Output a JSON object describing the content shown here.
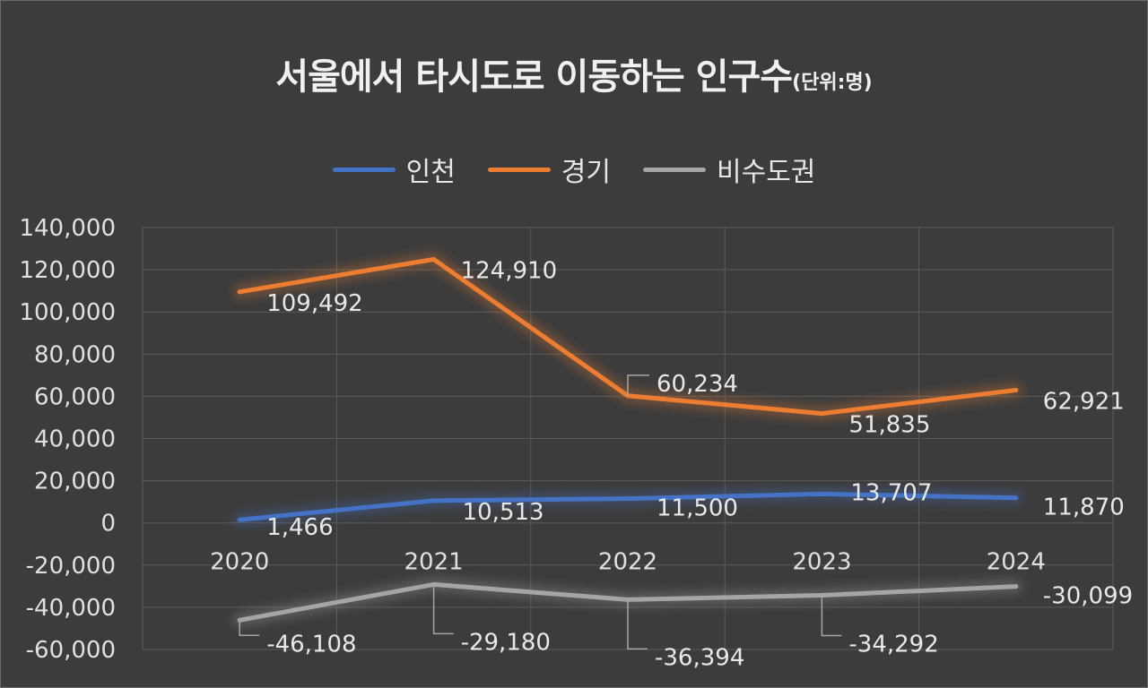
{
  "title_main": "서울에서 타시도로 이동하는 인구수",
  "title_unit": "(단위:명)",
  "chart_data": {
    "type": "line",
    "title": "서울에서 타시도로 이동하는 인구수(단위:명)",
    "categories": [
      "2020",
      "2021",
      "2022",
      "2023",
      "2024"
    ],
    "series": [
      {
        "name": "인천",
        "color": "#4472c4",
        "values": [
          1466,
          10513,
          11500,
          13707,
          11870
        ],
        "labels": [
          "1,466",
          "10,513",
          "11,500",
          "13,707",
          "11,870"
        ]
      },
      {
        "name": "경기",
        "color": "#ed7d31",
        "values": [
          109492,
          124910,
          60234,
          51835,
          62921
        ],
        "labels": [
          "109,492",
          "124,910",
          "60,234",
          "51,835",
          "62,921"
        ]
      },
      {
        "name": "비수도권",
        "color": "#a5a5a5",
        "values": [
          -46108,
          -29180,
          -36394,
          -34292,
          -30099
        ],
        "labels": [
          "-46,108",
          "-29,180",
          "-36,394",
          "-34,292",
          "-30,099"
        ]
      }
    ],
    "ylim": [
      -60000,
      140000
    ],
    "yticks": [
      140000,
      120000,
      100000,
      80000,
      60000,
      40000,
      20000,
      0,
      -20000,
      -40000,
      -60000
    ],
    "ytick_labels": [
      "140,000",
      "120,000",
      "100,000",
      "80,000",
      "60,000",
      "40,000",
      "20,000",
      "0",
      "-20,000",
      "-40,000",
      "-60,000"
    ],
    "xlabel": "",
    "ylabel": "",
    "grid": true,
    "legend": "top-center"
  }
}
